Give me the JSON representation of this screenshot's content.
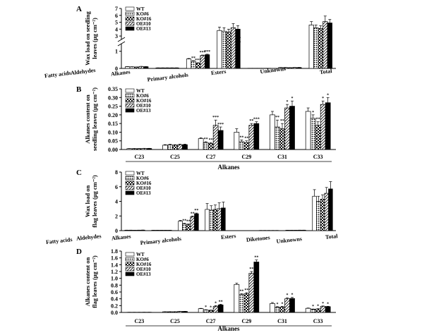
{
  "figure": {
    "series_names": [
      "WT",
      "KO#6",
      "KO#16",
      "OE#10",
      "OE#13"
    ],
    "series_patterns": [
      "white",
      "dots",
      "checker",
      "hatch",
      "black"
    ]
  },
  "chart_data": [
    {
      "panel_letter": "A",
      "type": "bar",
      "ylabel_line1": "Wax load on seedling",
      "ylabel_line2": "leaves (μg cm⁻²)",
      "axis_break": true,
      "lower_ylim": [
        0,
        1.4
      ],
      "lower_ticks": [
        0,
        1
      ],
      "upper_ylim": [
        2.6,
        7
      ],
      "upper_ticks": [
        3,
        4,
        5,
        6,
        7
      ],
      "categories": [
        "Fatty acids",
        "Aldehydes",
        "Alkanes",
        "Primary alcohols",
        "Esters",
        "Unknowns",
        "Total"
      ],
      "series": [
        {
          "name": "WT",
          "values": [
            0.1,
            0.03,
            0.55,
            3.8,
            0.01,
            0.05,
            4.6
          ],
          "errors": [
            0.01,
            0.005,
            0.03,
            0.5,
            0,
            0.01,
            0.5
          ]
        },
        {
          "name": "KO#6",
          "values": [
            0.09,
            0.03,
            0.42,
            3.7,
            0.01,
            0.05,
            4.2
          ],
          "errors": [
            0.01,
            0.005,
            0.03,
            0.5,
            0,
            0.01,
            0.4
          ]
        },
        {
          "name": "KO#16",
          "values": [
            0.08,
            0.03,
            0.3,
            3.6,
            0.01,
            0.04,
            4.1
          ],
          "errors": [
            0.01,
            0.005,
            0.03,
            0.4,
            0,
            0.01,
            0.4
          ]
        },
        {
          "name": "OE#10",
          "values": [
            0.11,
            0.03,
            0.75,
            4.2,
            0.01,
            0.05,
            5.1
          ],
          "errors": [
            0.01,
            0.005,
            0.03,
            0.6,
            0,
            0.01,
            0.8
          ]
        },
        {
          "name": "OE#13",
          "values": [
            0.1,
            0.03,
            0.8,
            4.0,
            0.01,
            0.05,
            4.9
          ],
          "errors": [
            0.01,
            0.005,
            0.03,
            0.5,
            0,
            0.01,
            0.5
          ]
        }
      ],
      "significance": [
        {
          "category": "Alkanes",
          "series": "KO#6",
          "mark": "**"
        },
        {
          "category": "Alkanes",
          "series": "KO#16",
          "mark": "***"
        },
        {
          "category": "Alkanes",
          "series": "OE#10",
          "mark": "***"
        },
        {
          "category": "Alkanes",
          "series": "OE#13",
          "mark": "***"
        }
      ]
    },
    {
      "panel_letter": "B",
      "type": "bar",
      "ylabel_line1": "Alkanes content on",
      "ylabel_line2": "seedling leaves (μg cm⁻²)",
      "xlabel": "Alkanes",
      "ylim": [
        0,
        0.35
      ],
      "yticks": [
        "0.00",
        "0.05",
        "0.10",
        "0.15",
        "0.20",
        "0.25",
        "0.30",
        "0.35"
      ],
      "categories": [
        "C23",
        "C25",
        "C27",
        "C29",
        "C31",
        "C33"
      ],
      "series": [
        {
          "name": "WT",
          "values": [
            0.005,
            0.025,
            0.063,
            0.1,
            0.2,
            0.22
          ],
          "errors": [
            0.001,
            0.003,
            0.005,
            0.02,
            0.02,
            0.02
          ]
        },
        {
          "name": "KO#6",
          "values": [
            0.005,
            0.027,
            0.04,
            0.045,
            0.13,
            0.18
          ],
          "errors": [
            0.001,
            0.003,
            0.005,
            0.01,
            0.04,
            0.02
          ]
        },
        {
          "name": "KO#16",
          "values": [
            0.005,
            0.025,
            0.035,
            0.04,
            0.12,
            0.14
          ],
          "errors": [
            0.001,
            0.003,
            0.005,
            0.01,
            0.03,
            0.02
          ]
        },
        {
          "name": "OE#10",
          "values": [
            0.006,
            0.028,
            0.14,
            0.14,
            0.24,
            0.26
          ],
          "errors": [
            0.001,
            0.003,
            0.03,
            0.01,
            0.02,
            0.02
          ]
        },
        {
          "name": "OE#13",
          "values": [
            0.006,
            0.028,
            0.11,
            0.15,
            0.25,
            0.27
          ],
          "errors": [
            0.001,
            0.003,
            0.02,
            0.01,
            0.03,
            0.03
          ]
        }
      ],
      "significance": [
        {
          "category": "C27",
          "series": "KO#6",
          "mark": "**"
        },
        {
          "category": "C27",
          "series": "KO#16",
          "mark": "**"
        },
        {
          "category": "C27",
          "series": "OE#10",
          "mark": "***"
        },
        {
          "category": "C27",
          "series": "OE#13",
          "mark": "***"
        },
        {
          "category": "C29",
          "series": "KO#6",
          "mark": "**"
        },
        {
          "category": "C29",
          "series": "KO#16",
          "mark": "**"
        },
        {
          "category": "C29",
          "series": "OE#10",
          "mark": "**"
        },
        {
          "category": "C29",
          "series": "OE#13",
          "mark": "***"
        },
        {
          "category": "C31",
          "series": "KO#6",
          "mark": "**"
        },
        {
          "category": "C31",
          "series": "KO#16",
          "mark": "**"
        },
        {
          "category": "C31",
          "series": "OE#10",
          "mark": "*"
        },
        {
          "category": "C31",
          "series": "OE#13",
          "mark": "*"
        },
        {
          "category": "C33",
          "series": "KO#6",
          "mark": "*"
        },
        {
          "category": "C33",
          "series": "KO#16",
          "mark": "**"
        },
        {
          "category": "C33",
          "series": "OE#10",
          "mark": "*"
        },
        {
          "category": "C33",
          "series": "OE#13",
          "mark": "*"
        }
      ]
    },
    {
      "panel_letter": "C",
      "type": "bar",
      "ylabel_line1": "Wax load on",
      "ylabel_line2": "flag leaves (μg cm⁻²)",
      "ylim": [
        0,
        8
      ],
      "yticks": [
        "0",
        "2",
        "4",
        "6",
        "8"
      ],
      "categories": [
        "Fatty acids",
        "Aldehydes",
        "Alkanes",
        "Primary alcohols",
        "Esters",
        "Diketones",
        "Unknowns",
        "Total"
      ],
      "series": [
        {
          "name": "WT",
          "values": [
            0.06,
            0.05,
            1.3,
            2.9,
            0.0,
            0.02,
            0.05,
            4.7
          ],
          "errors": [
            0.01,
            0.01,
            0.1,
            0.8,
            0,
            0.01,
            0.01,
            0.9
          ]
        },
        {
          "name": "KO#6",
          "values": [
            0.06,
            0.05,
            0.9,
            2.8,
            0.0,
            0.02,
            0.05,
            4.0
          ],
          "errors": [
            0.01,
            0.01,
            0.1,
            0.6,
            0,
            0.01,
            0.01,
            0.7
          ]
        },
        {
          "name": "KO#16",
          "values": [
            0.05,
            0.05,
            0.8,
            2.9,
            0.0,
            0.02,
            0.05,
            4.3
          ],
          "errors": [
            0.01,
            0.01,
            0.1,
            0.6,
            0,
            0.01,
            0.01,
            0.6
          ]
        },
        {
          "name": "OE#10",
          "values": [
            0.06,
            0.05,
            1.9,
            3.0,
            0.0,
            0.02,
            0.06,
            5.1
          ],
          "errors": [
            0.01,
            0.01,
            0.1,
            0.8,
            0,
            0.01,
            0.01,
            0.8
          ]
        },
        {
          "name": "OE#13",
          "values": [
            0.07,
            0.05,
            2.3,
            3.1,
            0.0,
            0.02,
            0.06,
            5.7
          ],
          "errors": [
            0.01,
            0.01,
            0.1,
            0.8,
            0,
            0.01,
            0.01,
            1.0
          ]
        }
      ],
      "significance": [
        {
          "category": "Alkanes",
          "series": "KO#6",
          "mark": "**"
        },
        {
          "category": "Alkanes",
          "series": "KO#16",
          "mark": "**"
        },
        {
          "category": "Alkanes",
          "series": "OE#10",
          "mark": "**"
        },
        {
          "category": "Alkanes",
          "series": "OE#13",
          "mark": "**"
        }
      ]
    },
    {
      "panel_letter": "D",
      "type": "bar",
      "ylabel_line1": "Alkanes content on",
      "ylabel_line2": "flag leaves (μg cm⁻²)",
      "xlabel": "Alkanes",
      "ylim": [
        0,
        1.8
      ],
      "yticks": [
        "0.0",
        "0.2",
        "0.4",
        "0.6",
        "0.8",
        "1.0",
        "1.2",
        "1.4",
        "1.6",
        "1.8"
      ],
      "categories": [
        "C23",
        "C25",
        "C27",
        "C29",
        "C31",
        "C33"
      ],
      "series": [
        {
          "name": "WT",
          "values": [
            0.005,
            0.02,
            0.11,
            0.82,
            0.26,
            0.12
          ],
          "errors": [
            0.001,
            0.003,
            0.01,
            0.04,
            0.03,
            0.01
          ]
        },
        {
          "name": "KO#6",
          "values": [
            0.005,
            0.02,
            0.07,
            0.52,
            0.15,
            0.09
          ],
          "errors": [
            0.001,
            0.003,
            0.01,
            0.03,
            0.02,
            0.01
          ]
        },
        {
          "name": "KO#16",
          "values": [
            0.005,
            0.02,
            0.06,
            0.55,
            0.16,
            0.1
          ],
          "errors": [
            0.001,
            0.003,
            0.01,
            0.03,
            0.02,
            0.01
          ]
        },
        {
          "name": "OE#10",
          "values": [
            0.006,
            0.03,
            0.18,
            1.15,
            0.4,
            0.18
          ],
          "errors": [
            0.001,
            0.003,
            0.02,
            0.05,
            0.03,
            0.01
          ]
        },
        {
          "name": "OE#13",
          "values": [
            0.006,
            0.03,
            0.22,
            1.48,
            0.41,
            0.17
          ],
          "errors": [
            0.001,
            0.003,
            0.02,
            0.06,
            0.03,
            0.01
          ]
        }
      ],
      "significance": [
        {
          "category": "C27",
          "series": "KO#6",
          "mark": "*"
        },
        {
          "category": "C27",
          "series": "KO#16",
          "mark": "*"
        },
        {
          "category": "C27",
          "series": "OE#10",
          "mark": "*"
        },
        {
          "category": "C27",
          "series": "OE#13",
          "mark": "**"
        },
        {
          "category": "C29",
          "series": "KO#6",
          "mark": "**"
        },
        {
          "category": "C29",
          "series": "KO#16",
          "mark": "**"
        },
        {
          "category": "C29",
          "series": "OE#10",
          "mark": "**"
        },
        {
          "category": "C29",
          "series": "OE#13",
          "mark": "**"
        },
        {
          "category": "C31",
          "series": "KO#6",
          "mark": "*"
        },
        {
          "category": "C31",
          "series": "KO#16",
          "mark": "*"
        },
        {
          "category": "C31",
          "series": "OE#10",
          "mark": "*"
        },
        {
          "category": "C31",
          "series": "OE#13",
          "mark": "*"
        },
        {
          "category": "C33",
          "series": "KO#6",
          "mark": "*"
        },
        {
          "category": "C33",
          "series": "KO#16",
          "mark": "*"
        },
        {
          "category": "C33",
          "series": "OE#10",
          "mark": "*"
        },
        {
          "category": "C33",
          "series": "OE#13",
          "mark": "*"
        }
      ]
    }
  ]
}
